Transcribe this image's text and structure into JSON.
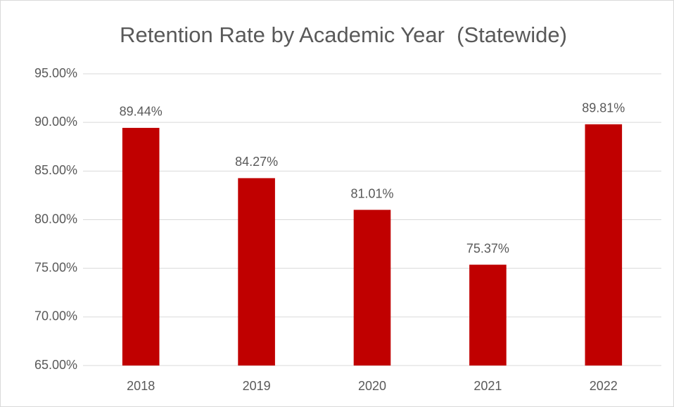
{
  "chart_data": {
    "type": "bar",
    "title": "Retention Rate by Academic Year  (Statewide)",
    "categories": [
      "2018",
      "2019",
      "2020",
      "2021",
      "2022"
    ],
    "values": [
      89.44,
      84.27,
      81.01,
      75.37,
      89.81
    ],
    "value_labels": [
      "89.44%",
      "84.27%",
      "81.01%",
      "75.37%",
      "89.81%"
    ],
    "color": "#c00000",
    "ylim": [
      65,
      95
    ],
    "yticks": [
      {
        "value": 65,
        "label": "65.00%"
      },
      {
        "value": 70,
        "label": "70.00%"
      },
      {
        "value": 75,
        "label": "75.00%"
      },
      {
        "value": 80,
        "label": "80.00%"
      },
      {
        "value": 85,
        "label": "85.00%"
      },
      {
        "value": 90,
        "label": "90.00%"
      },
      {
        "value": 95,
        "label": "95.00%"
      }
    ],
    "grid": true
  }
}
